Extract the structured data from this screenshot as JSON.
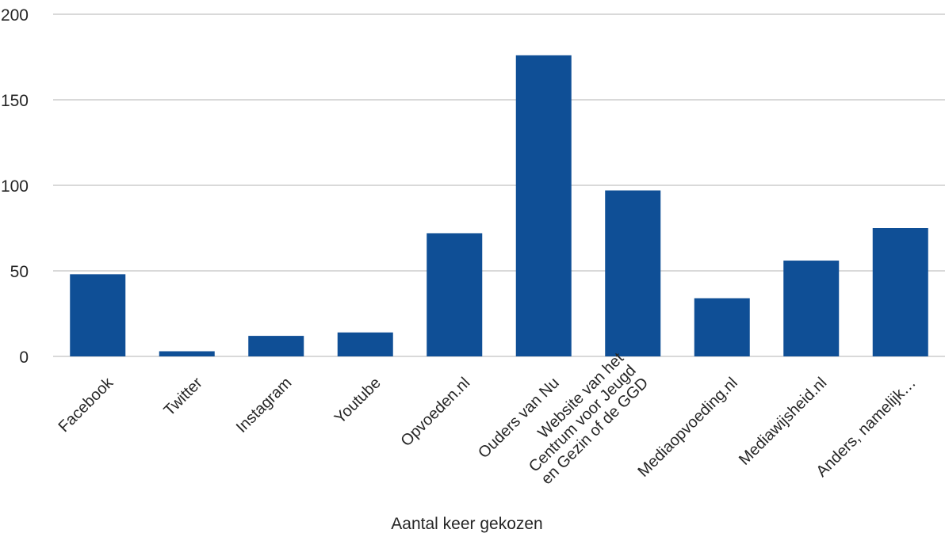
{
  "chart_data": {
    "type": "bar",
    "xlabel": "Aantal keer gekozen",
    "ylabel": "",
    "ylim": [
      0,
      200
    ],
    "yticks": [
      0,
      50,
      100,
      150,
      200
    ],
    "grid": true,
    "legend": "none",
    "bar_color": "#0f4f96",
    "grid_color": "#d9d9d9",
    "categories": [
      "Facebook",
      "Twitter",
      "Instagram",
      "Youtube",
      "Opvoeden.nl",
      "Ouders van Nu",
      "Website van het Centrum voor Jeugd en Gezin of de GGD",
      "Mediaopvoeding.nl",
      "Mediawijsheid.nl",
      "Anders, namelijk…"
    ],
    "category_label_lines": [
      [
        "Facebook"
      ],
      [
        "Twitter"
      ],
      [
        "Instagram"
      ],
      [
        "Youtube"
      ],
      [
        "Opvoeden.nl"
      ],
      [
        "Ouders van Nu"
      ],
      [
        "Website van het",
        "Centrum voor Jeugd",
        "en Gezin of de GGD"
      ],
      [
        "Mediaopvoeding.nl"
      ],
      [
        "Mediawijsheid.nl"
      ],
      [
        "Anders, namelijk…"
      ]
    ],
    "values": [
      48,
      3,
      12,
      14,
      72,
      176,
      97,
      34,
      56,
      75
    ]
  }
}
